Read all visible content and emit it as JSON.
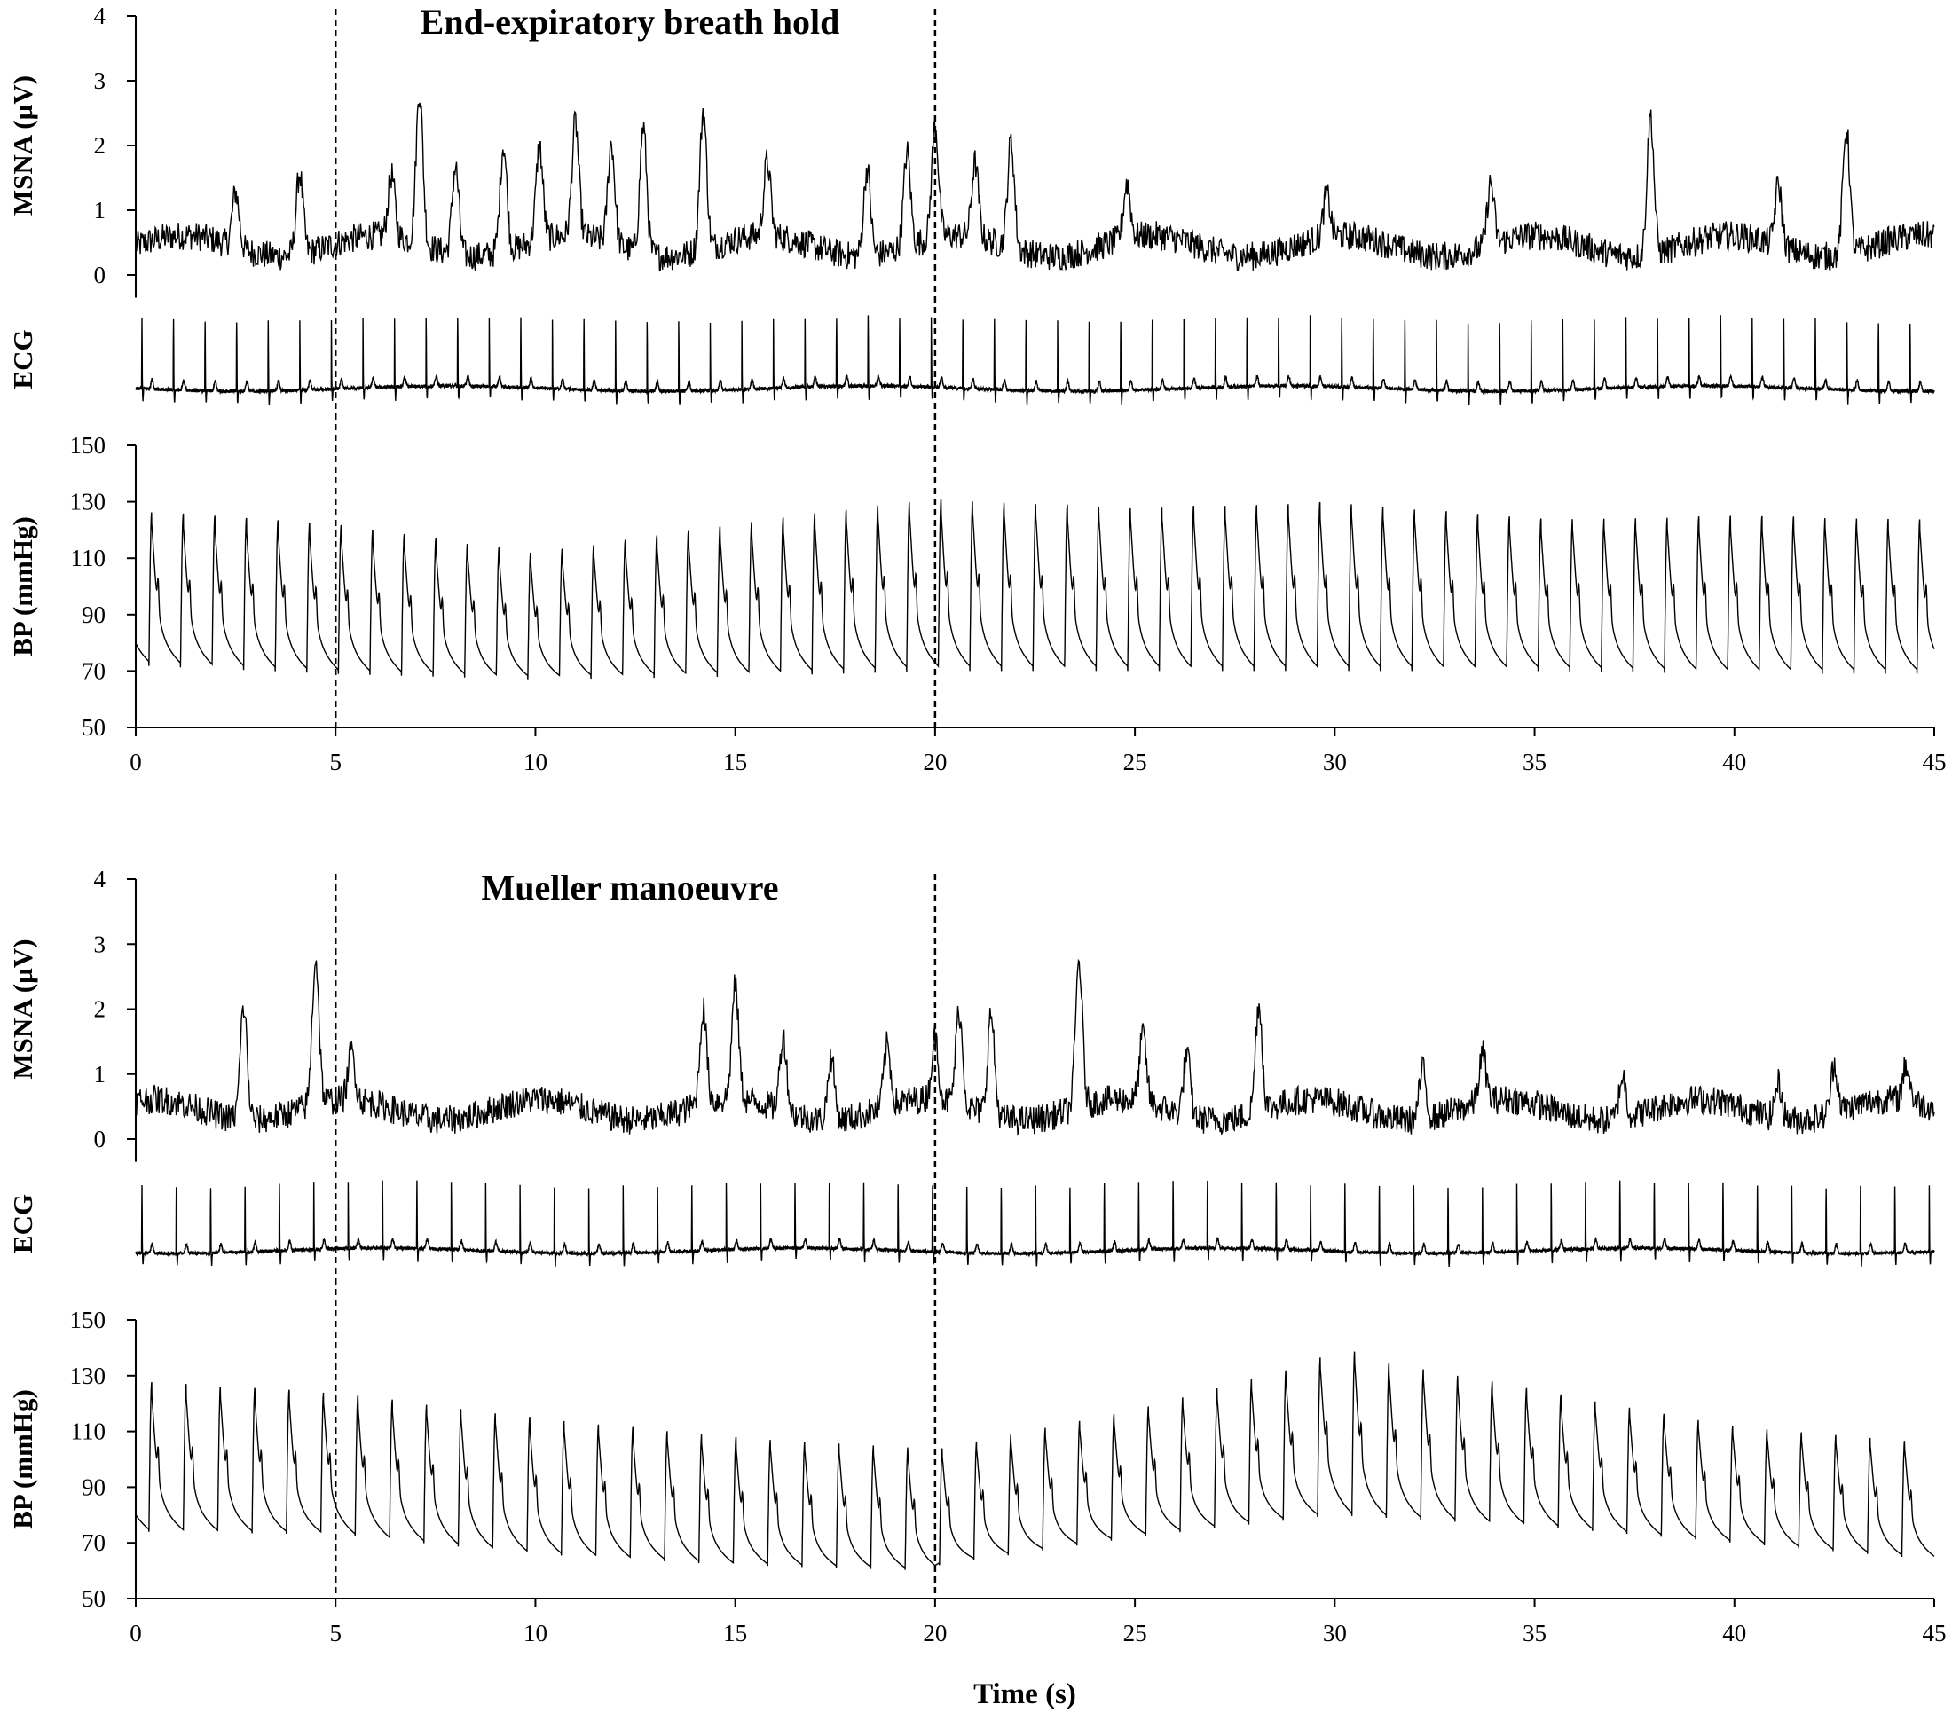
{
  "figure": {
    "xlabel": "Time  (s)"
  },
  "chart_data": [
    {
      "type": "line",
      "title": "End-expiratory breath hold",
      "x_range": [
        0,
        45
      ],
      "x_ticks": [
        "0",
        "5",
        "10",
        "15",
        "20",
        "25",
        "30",
        "35",
        "40",
        "45"
      ],
      "markers_s": [
        5,
        20
      ],
      "panels": [
        {
          "signal": "MSNA",
          "ylabel": "MSNA  (µV)",
          "ylim": [
            0,
            4
          ],
          "y_ticks": [
            "0",
            "1",
            "2",
            "3",
            "4"
          ],
          "baseline_uV": 0.45,
          "burst_times_s": [
            2.5,
            4.1,
            6.4,
            7.1,
            8.0,
            9.2,
            10.1,
            11.0,
            11.9,
            12.7,
            14.2,
            15.8,
            18.3,
            19.3,
            20.0,
            21.0,
            21.9,
            24.8,
            29.8,
            33.9,
            37.9,
            41.1,
            42.8
          ],
          "burst_peaks_uV": [
            1.3,
            1.7,
            1.4,
            2.8,
            1.8,
            2.1,
            1.9,
            2.2,
            2.0,
            2.4,
            2.6,
            1.6,
            1.8,
            1.9,
            2.2,
            1.6,
            2.1,
            1.3,
            1.1,
            1.4,
            2.6,
            1.4,
            2.4
          ]
        },
        {
          "signal": "ECG",
          "ylabel": "ECG",
          "beat_interval_s": 0.79
        },
        {
          "signal": "BP",
          "ylabel": "BP (mmHg)",
          "ylim": [
            50,
            150
          ],
          "y_ticks": [
            "50",
            "70",
            "90",
            "110",
            "130",
            "150"
          ],
          "systolic_mmHg": [
            [
              0,
              127
            ],
            [
              5,
              122
            ],
            [
              10,
              112
            ],
            [
              13,
              118
            ],
            [
              19,
              130
            ],
            [
              20.1,
              131
            ],
            [
              25,
              128
            ],
            [
              30,
              130
            ],
            [
              35,
              124
            ],
            [
              40,
              125
            ],
            [
              45,
              124
            ]
          ],
          "diastolic_mmHg": [
            [
              0,
              72
            ],
            [
              5,
              69
            ],
            [
              10,
              67
            ],
            [
              15,
              68
            ],
            [
              20,
              70
            ],
            [
              25,
              70
            ],
            [
              30,
              70
            ],
            [
              35,
              70
            ],
            [
              40,
              69
            ],
            [
              45,
              69
            ]
          ]
        }
      ]
    },
    {
      "type": "line",
      "title": "Mueller manoeuvre",
      "x_range": [
        0,
        45
      ],
      "x_ticks": [
        "0",
        "5",
        "10",
        "15",
        "20",
        "25",
        "30",
        "35",
        "40",
        "45"
      ],
      "markers_s": [
        5,
        20
      ],
      "panels": [
        {
          "signal": "MSNA",
          "ylabel": "MSNA  (µV)",
          "ylim": [
            0,
            4
          ],
          "y_ticks": [
            "0",
            "1",
            "2",
            "3",
            "4"
          ],
          "baseline_uV": 0.45,
          "burst_times_s": [
            2.7,
            4.5,
            5.4,
            14.2,
            15.0,
            16.2,
            17.4,
            18.8,
            20.0,
            20.6,
            21.4,
            23.6,
            25.2,
            26.3,
            28.1,
            32.2,
            33.7,
            37.2,
            41.1,
            42.5,
            44.3
          ],
          "burst_peaks_uV": [
            2.2,
            2.7,
            1.2,
            1.9,
            2.2,
            1.6,
            1.4,
            1.4,
            1.4,
            1.9,
            2.0,
            2.7,
            1.5,
            1.4,
            2.1,
            1.2,
            1.2,
            1.1,
            1.0,
            1.2,
            1.0
          ]
        },
        {
          "signal": "ECG",
          "ylabel": "ECG",
          "beat_interval_s": 0.86
        },
        {
          "signal": "BP",
          "ylabel": "BP (mmHg)",
          "ylim": [
            50,
            150
          ],
          "y_ticks": [
            "50",
            "70",
            "90",
            "110",
            "130",
            "150"
          ],
          "systolic_mmHg": [
            [
              0,
              128
            ],
            [
              5,
              124
            ],
            [
              10,
              115
            ],
            [
              15,
              108
            ],
            [
              20,
              104
            ],
            [
              20.1,
              104
            ],
            [
              25,
              118
            ],
            [
              29.5,
              135
            ],
            [
              30,
              142
            ],
            [
              31,
              136
            ],
            [
              35,
              125
            ],
            [
              40,
              112
            ],
            [
              45,
              106
            ]
          ],
          "diastolic_mmHg": [
            [
              0,
              74
            ],
            [
              5,
              73
            ],
            [
              10,
              66
            ],
            [
              15,
              62
            ],
            [
              20,
              60
            ],
            [
              20.1,
              62
            ],
            [
              25,
              72
            ],
            [
              30,
              80
            ],
            [
              35,
              76
            ],
            [
              40,
              70
            ],
            [
              45,
              64
            ]
          ]
        }
      ]
    }
  ]
}
